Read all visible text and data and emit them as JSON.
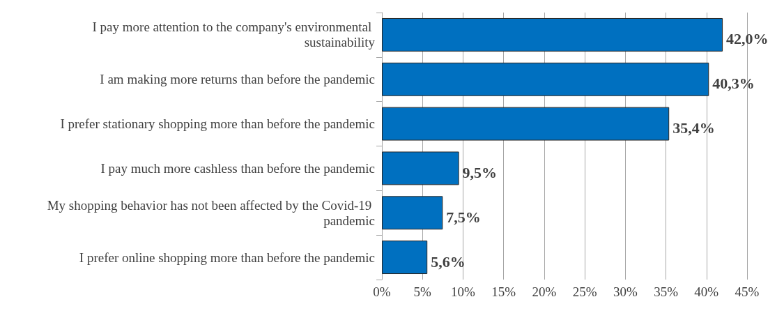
{
  "chart_data": {
    "type": "bar",
    "orientation": "horizontal",
    "categories": [
      "I pay more attention to the company's environmental sustainability",
      "I am making more returns than before the pandemic",
      "I prefer stationary shopping more than before the pandemic",
      "I pay much more cashless than before the pandemic",
      "My shopping behavior has not been affected by the Covid-19 pandemic",
      "I prefer online shopping more than before the pandemic"
    ],
    "values": [
      42.0,
      40.3,
      35.4,
      9.5,
      7.5,
      5.6
    ],
    "value_labels": [
      "42,0%",
      "40,3%",
      "35,4%",
      "9,5%",
      "7,5%",
      "5,6%"
    ],
    "color": "#0070c0",
    "xlim": [
      0,
      45
    ],
    "xticks": [
      {
        "value": 0,
        "label": "0%"
      },
      {
        "value": 5,
        "label": "5%"
      },
      {
        "value": 10,
        "label": "10%"
      },
      {
        "value": 15,
        "label": "15%"
      },
      {
        "value": 20,
        "label": "20%"
      },
      {
        "value": 25,
        "label": "25%"
      },
      {
        "value": 30,
        "label": "30%"
      },
      {
        "value": 35,
        "label": "35%"
      },
      {
        "value": 40,
        "label": "40%"
      },
      {
        "value": 45,
        "label": "45%"
      }
    ],
    "grid": "x"
  }
}
